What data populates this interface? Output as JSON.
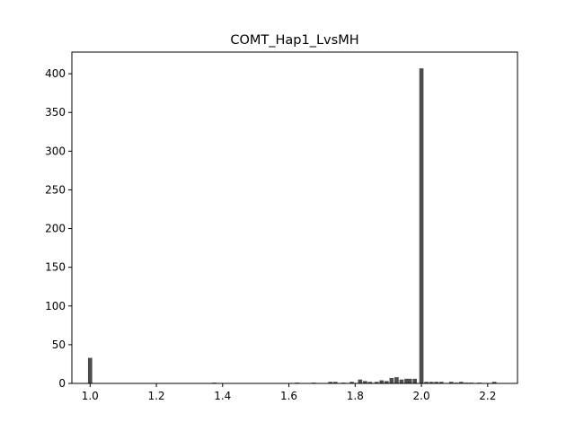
{
  "chart_data": {
    "type": "bar",
    "title": "COMT_Hap1_LvsMH",
    "xlabel": "",
    "ylabel": "",
    "xlim": [
      0.945,
      2.29
    ],
    "ylim": [
      0,
      428
    ],
    "bin_width": 0.0127,
    "bar_color": "#4d4d4d",
    "x_ticks": [
      1.0,
      1.2,
      1.4,
      1.6,
      1.8,
      2.0,
      2.2
    ],
    "x_tick_labels": [
      "1.0",
      "1.2",
      "1.4",
      "1.6",
      "1.8",
      "2.0",
      "2.2"
    ],
    "y_ticks": [
      0,
      50,
      100,
      150,
      200,
      250,
      300,
      350,
      400
    ],
    "y_tick_labels": [
      "0",
      "50",
      "100",
      "150",
      "200",
      "250",
      "300",
      "350",
      "400"
    ],
    "bins": [
      {
        "x": 1.0,
        "count": 33
      },
      {
        "x": 1.375,
        "count": 1
      },
      {
        "x": 1.625,
        "count": 1
      },
      {
        "x": 1.675,
        "count": 1
      },
      {
        "x": 1.725,
        "count": 2
      },
      {
        "x": 1.74,
        "count": 2
      },
      {
        "x": 1.765,
        "count": 1
      },
      {
        "x": 1.79,
        "count": 2
      },
      {
        "x": 1.815,
        "count": 5
      },
      {
        "x": 1.83,
        "count": 3
      },
      {
        "x": 1.845,
        "count": 2
      },
      {
        "x": 1.865,
        "count": 2
      },
      {
        "x": 1.88,
        "count": 4
      },
      {
        "x": 1.895,
        "count": 3
      },
      {
        "x": 1.91,
        "count": 7
      },
      {
        "x": 1.925,
        "count": 8
      },
      {
        "x": 1.94,
        "count": 5
      },
      {
        "x": 1.955,
        "count": 6
      },
      {
        "x": 1.965,
        "count": 6
      },
      {
        "x": 1.98,
        "count": 6
      },
      {
        "x": 2.0,
        "count": 407
      },
      {
        "x": 2.015,
        "count": 2
      },
      {
        "x": 2.03,
        "count": 2
      },
      {
        "x": 2.045,
        "count": 2
      },
      {
        "x": 2.06,
        "count": 2
      },
      {
        "x": 2.09,
        "count": 2
      },
      {
        "x": 2.105,
        "count": 1
      },
      {
        "x": 2.12,
        "count": 2
      },
      {
        "x": 2.135,
        "count": 1
      },
      {
        "x": 2.15,
        "count": 1
      },
      {
        "x": 2.175,
        "count": 1
      },
      {
        "x": 2.22,
        "count": 2
      }
    ]
  }
}
